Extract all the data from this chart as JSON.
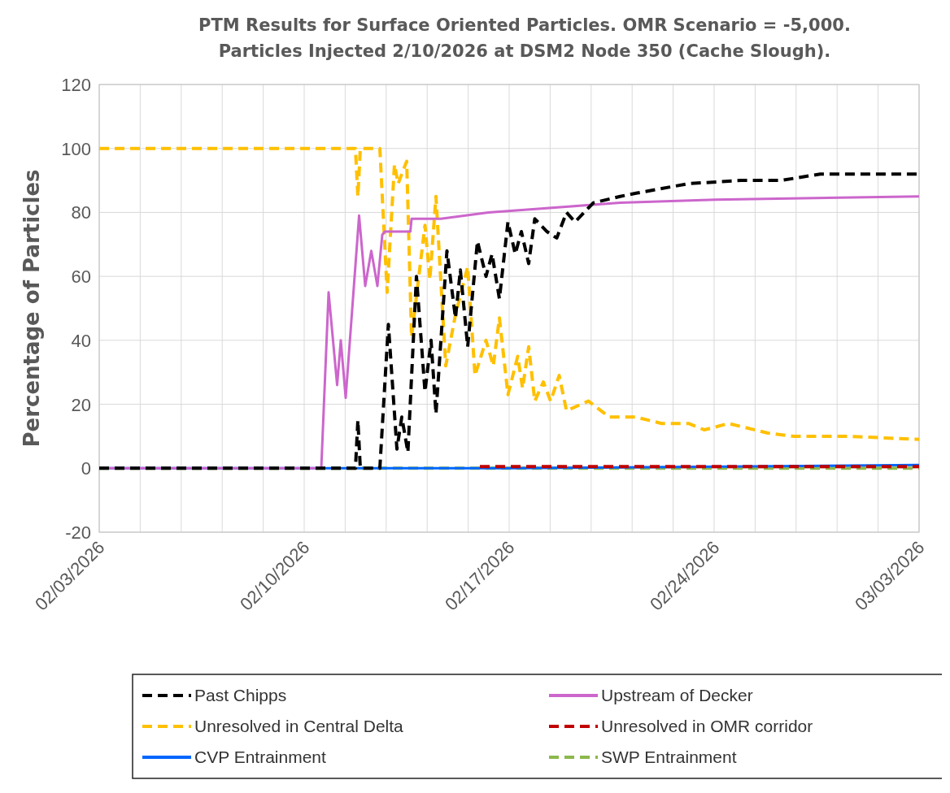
{
  "chart_data": {
    "type": "line",
    "title": "PTM Results for Surface Oriented Particles. OMR Scenario = -5,000.\nParticles Injected 2/10/2026 at DSM2 Node 350 (Cache Slough).",
    "ylabel": "Percentage of Particles",
    "xlim": [
      "2026-02-03T00:00",
      "2026-03-03T00:00"
    ],
    "xticks": [
      {
        "value": "2026-02-03T00:00",
        "label": "02/03/2026"
      },
      {
        "value": "2026-02-04T09:36",
        "label": null
      },
      {
        "value": "2026-02-05T19:12",
        "label": null
      },
      {
        "value": "2026-02-07T04:48",
        "label": null
      },
      {
        "value": "2026-02-08T14:24",
        "label": null
      },
      {
        "value": "2026-02-10T00:00",
        "label": "02/10/2026"
      },
      {
        "value": "2026-02-11T09:36",
        "label": null
      },
      {
        "value": "2026-02-12T19:12",
        "label": null
      },
      {
        "value": "2026-02-14T04:48",
        "label": null
      },
      {
        "value": "2026-02-15T14:24",
        "label": null
      },
      {
        "value": "2026-02-17T00:00",
        "label": "02/17/2026"
      },
      {
        "value": "2026-02-18T09:36",
        "label": null
      },
      {
        "value": "2026-02-19T19:12",
        "label": null
      },
      {
        "value": "2026-02-21T04:48",
        "label": null
      },
      {
        "value": "2026-02-22T14:24",
        "label": null
      },
      {
        "value": "2026-02-24T00:00",
        "label": "02/24/2026"
      },
      {
        "value": "2026-02-25T09:36",
        "label": null
      },
      {
        "value": "2026-02-26T19:12",
        "label": null
      },
      {
        "value": "2026-02-28T04:48",
        "label": null
      },
      {
        "value": "2026-03-01T14:24",
        "label": null
      },
      {
        "value": "2026-03-03T00:00",
        "label": "03/03/2026"
      }
    ],
    "ylim": [
      -20,
      120
    ],
    "yticks": [
      -20,
      0,
      20,
      40,
      60,
      80,
      100,
      120
    ],
    "grid": true,
    "legend": "bottom",
    "marker": "none",
    "series": [
      {
        "name": "Past Chipps",
        "color": "#000000",
        "line_style": "dashed",
        "x": [
          "2026-02-03T00:00",
          "2026-02-11T18:00",
          "2026-02-11T20:00",
          "2026-02-11T22:00",
          "2026-02-12T14:00",
          "2026-02-12T21:00",
          "2026-02-13T04:00",
          "2026-02-13T08:00",
          "2026-02-13T13:00",
          "2026-02-13T20:00",
          "2026-02-14T03:00",
          "2026-02-14T08:00",
          "2026-02-14T12:00",
          "2026-02-14T21:00",
          "2026-02-15T04:00",
          "2026-02-15T08:00",
          "2026-02-15T14:00",
          "2026-02-15T22:00",
          "2026-02-16T05:00",
          "2026-02-16T10:00",
          "2026-02-16T16:00",
          "2026-02-16T23:00",
          "2026-02-17T05:00",
          "2026-02-17T10:00",
          "2026-02-17T16:00",
          "2026-02-17T21:00",
          "2026-02-18T07:00",
          "2026-02-18T15:00",
          "2026-02-18T23:00",
          "2026-02-19T06:00",
          "2026-02-19T21:00",
          "2026-02-20T19:00",
          "2026-02-21T08:00",
          "2026-02-23T03:00",
          "2026-02-24T22:00",
          "2026-02-26T07:00",
          "2026-02-27T15:00",
          "2026-03-03T00:00"
        ],
        "values": [
          0,
          0,
          15,
          0,
          0,
          45,
          6,
          16,
          5,
          60,
          24,
          40,
          17,
          68,
          47,
          62,
          38,
          71,
          60,
          67,
          53,
          77,
          67,
          74,
          64,
          78,
          74,
          72,
          80,
          77,
          83,
          85,
          86,
          89,
          90,
          90,
          92,
          92
        ]
      },
      {
        "name": "Upstream of Decker",
        "color": "#cc66cc",
        "line_style": "solid",
        "x": [
          "2026-02-03T00:00",
          "2026-02-10T14:00",
          "2026-02-10T20:00",
          "2026-02-11T03:00",
          "2026-02-11T06:00",
          "2026-02-11T10:00",
          "2026-02-11T21:00",
          "2026-02-12T02:00",
          "2026-02-12T07:00",
          "2026-02-12T12:00",
          "2026-02-12T16:00",
          "2026-02-12T18:00",
          "2026-02-13T15:00",
          "2026-02-13T16:00",
          "2026-02-14T16:00",
          "2026-02-16T07:00",
          "2026-02-20T19:00",
          "2026-02-24T01:00",
          "2026-03-03T00:00"
        ],
        "values": [
          0,
          0,
          55,
          26,
          40,
          22,
          79,
          57,
          68,
          57,
          73,
          74,
          74,
          78,
          78,
          80,
          83,
          84,
          85
        ]
      },
      {
        "name": "Unresolved in Central Delta",
        "color": "#ffc000",
        "line_style": "dashed",
        "x": [
          "2026-02-03T00:00",
          "2026-02-11T18:00",
          "2026-02-11T20:00",
          "2026-02-11T22:00",
          "2026-02-12T14:00",
          "2026-02-12T20:00",
          "2026-02-13T02:00",
          "2026-02-13T05:00",
          "2026-02-13T12:00",
          "2026-02-13T16:00",
          "2026-02-14T03:00",
          "2026-02-14T07:00",
          "2026-02-14T12:00",
          "2026-02-14T20:00",
          "2026-02-15T04:00",
          "2026-02-15T14:00",
          "2026-02-15T20:00",
          "2026-02-16T05:00",
          "2026-02-16T11:00",
          "2026-02-16T16:00",
          "2026-02-16T23:00",
          "2026-02-17T07:00",
          "2026-02-17T11:00",
          "2026-02-17T16:00",
          "2026-02-17T21:00",
          "2026-02-18T04:00",
          "2026-02-18T10:00",
          "2026-02-18T17:00",
          "2026-02-18T23:00",
          "2026-02-19T17:00",
          "2026-02-20T10:00",
          "2026-02-21T08:00",
          "2026-02-22T05:00",
          "2026-02-23T03:00",
          "2026-02-23T16:00",
          "2026-02-24T12:00",
          "2026-02-25T20:00",
          "2026-02-26T17:00",
          "2026-02-28T13:00",
          "2026-03-03T00:00"
        ],
        "values": [
          100,
          100,
          85,
          100,
          100,
          55,
          95,
          89,
          96,
          41,
          76,
          59,
          85,
          32,
          48,
          63,
          29,
          40,
          32,
          47,
          23,
          35,
          25,
          38,
          21,
          27,
          21,
          29,
          18,
          21,
          16,
          16,
          14,
          14,
          12,
          14,
          11,
          10,
          10,
          9
        ]
      },
      {
        "name": "Unresolved in OMR corridor",
        "color": "#c00000",
        "line_style": "dashed",
        "x": [
          "2026-02-16T00:00",
          "2026-03-03T00:00"
        ],
        "values": [
          0.5,
          0.5
        ]
      },
      {
        "name": "CVP Entrainment",
        "color": "#0066ff",
        "line_style": "solid",
        "x": [
          "2026-02-03T00:00",
          "2026-02-17T00:00",
          "2026-03-03T00:00"
        ],
        "values": [
          0,
          0,
          1
        ]
      },
      {
        "name": "SWP Entrainment",
        "color": "#8cb84c",
        "line_style": "dashed",
        "x": [
          "2026-02-03T00:00",
          "2026-03-03T00:00"
        ],
        "values": [
          0,
          0
        ]
      }
    ]
  }
}
